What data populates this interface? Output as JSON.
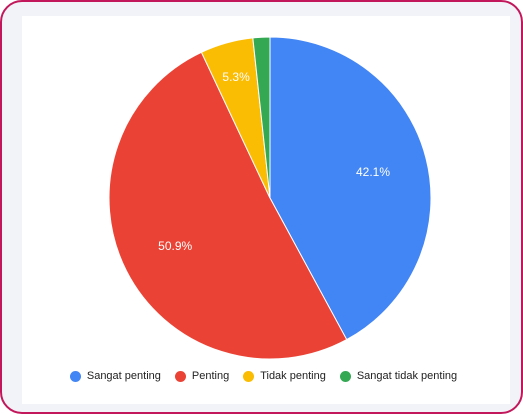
{
  "chart_data": {
    "type": "pie",
    "title": "",
    "start_angle_deg": 0,
    "direction": "clockwise",
    "legend_position": "bottom",
    "slices": [
      {
        "name": "Sangat penting",
        "value": 42.1,
        "label": "42.1%",
        "color": "#4285f4"
      },
      {
        "name": "Penting",
        "value": 50.9,
        "label": "50.9%",
        "color": "#ea4335"
      },
      {
        "name": "Tidak penting",
        "value": 5.3,
        "label": "5.3%",
        "color": "#fbbc04"
      },
      {
        "name": "Sangat tidak penting",
        "value": 1.7,
        "label": "",
        "color": "#34a853"
      }
    ]
  }
}
